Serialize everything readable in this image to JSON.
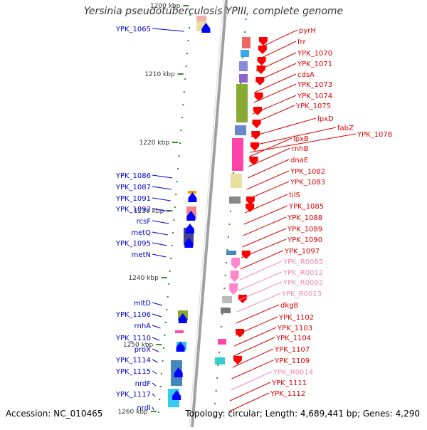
{
  "title": "Yersinia pseudotuberculosis YPIII, complete genome",
  "footer": {
    "accession": "Accession: NC_010465",
    "topology": "Topology: circular; Length: 4,689,441 bp; Genes: 4,290"
  },
  "colors": {
    "backbone": "#a0a0a0",
    "left_label": "#0000cc",
    "right_label": "#dd0000",
    "rna_label": "#ee88bb",
    "forward_arrow": "#0000ff",
    "reverse_arrow": "#ff0000",
    "rna_arrow": "#ff88cc",
    "tick": "#2e8b2e"
  },
  "ruler": [
    {
      "label": "1200 kbp"
    },
    {
      "label": "1210 kbp"
    },
    {
      "label": "1220 kbp"
    },
    {
      "label": "1230 kbp"
    },
    {
      "label": "1240 kbp"
    },
    {
      "label": "1250 kbp"
    },
    {
      "label": "1260 kbp"
    }
  ],
  "left_genes": [
    "YPK_1065",
    "YPK_1086",
    "YPK_1087",
    "YPK_1091",
    "YPK_1092",
    "rcsF",
    "metQ",
    "YPK_1095",
    "metN",
    "mltD",
    "YPK_1106",
    "rnhA",
    "YPK_1110",
    "proX",
    "YPK_1114",
    "YPK_1115",
    "nrdF",
    "YPK_1117",
    "nrdI"
  ],
  "right_genes": [
    {
      "name": "pyrH",
      "type": "gene"
    },
    {
      "name": "frr",
      "type": "gene"
    },
    {
      "name": "YPK_1070",
      "type": "gene"
    },
    {
      "name": "YPK_1071",
      "type": "gene"
    },
    {
      "name": "cdsA",
      "type": "gene"
    },
    {
      "name": "YPK_1073",
      "type": "gene"
    },
    {
      "name": "YPK_1074",
      "type": "gene"
    },
    {
      "name": "YPK_1075",
      "type": "gene"
    },
    {
      "name": "lpxD",
      "type": "gene"
    },
    {
      "name": "fabZ",
      "type": "gene"
    },
    {
      "name": "YPK_1078",
      "type": "gene"
    },
    {
      "name": "lpxB",
      "type": "gene"
    },
    {
      "name": "rnhB",
      "type": "gene"
    },
    {
      "name": "dnaE",
      "type": "gene"
    },
    {
      "name": "YPK_1082",
      "type": "gene"
    },
    {
      "name": "YPK_1083",
      "type": "gene"
    },
    {
      "name": "tilS",
      "type": "gene"
    },
    {
      "name": "YPK_1085",
      "type": "gene"
    },
    {
      "name": "YPK_1088",
      "type": "gene"
    },
    {
      "name": "YPK_1089",
      "type": "gene"
    },
    {
      "name": "YPK_1090",
      "type": "gene"
    },
    {
      "name": "YPK_1097",
      "type": "gene"
    },
    {
      "name": "YPK_R0085",
      "type": "rna"
    },
    {
      "name": "YPK_R0012",
      "type": "rna"
    },
    {
      "name": "YPK_R0092",
      "type": "rna"
    },
    {
      "name": "YPK_R0013",
      "type": "rna"
    },
    {
      "name": "dkgB",
      "type": "gene"
    },
    {
      "name": "YPK_1102",
      "type": "gene"
    },
    {
      "name": "YPK_1103",
      "type": "gene"
    },
    {
      "name": "YPK_1104",
      "type": "gene"
    },
    {
      "name": "YPK_1107",
      "type": "gene"
    },
    {
      "name": "YPK_1109",
      "type": "gene"
    },
    {
      "name": "YPK_R0014",
      "type": "rna"
    },
    {
      "name": "YPK_1111",
      "type": "gene"
    },
    {
      "name": "YPK_1112",
      "type": "gene"
    }
  ]
}
